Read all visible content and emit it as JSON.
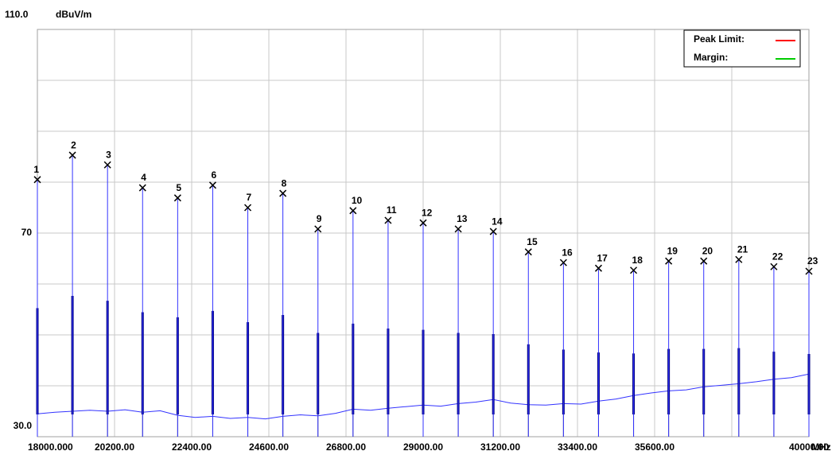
{
  "chart_data": {
    "type": "spectrum",
    "y_unit": "dBuV/m",
    "x_unit": "MHz",
    "xlim": [
      18000,
      40000
    ],
    "ylim": [
      30,
      110
    ],
    "xticks": [
      {
        "value": 18000,
        "label": "18000.000"
      },
      {
        "value": 20200,
        "label": "20200.00"
      },
      {
        "value": 22400,
        "label": "22400.00"
      },
      {
        "value": 24600,
        "label": "24600.00"
      },
      {
        "value": 26800,
        "label": "26800.00"
      },
      {
        "value": 29000,
        "label": "29000.00"
      },
      {
        "value": 31200,
        "label": "31200.00"
      },
      {
        "value": 33400,
        "label": "33400.00"
      },
      {
        "value": 35600,
        "label": "35600.00"
      },
      {
        "value": 37800,
        "label": null
      },
      {
        "value": 40000,
        "label": "40000.00"
      }
    ],
    "yticks": [
      {
        "value": 110,
        "label": "110.0"
      },
      {
        "value": 100,
        "label": null
      },
      {
        "value": 90,
        "label": null
      },
      {
        "value": 80,
        "label": null
      },
      70,
      {
        "value": 60,
        "label": null
      },
      {
        "value": 50,
        "label": null
      },
      {
        "value": 40,
        "label": null
      },
      {
        "value": 30,
        "label": "30.0"
      }
    ],
    "grid": true,
    "legend_position": "top-right",
    "legend": [
      {
        "name": "Peak Limit:",
        "color": "#ff0000"
      },
      {
        "name": "Margin:",
        "color": "#00cc00"
      }
    ],
    "peaks": {
      "color": "#3333ff",
      "labels": [
        1,
        2,
        3,
        4,
        5,
        6,
        7,
        8,
        9,
        10,
        11,
        12,
        13,
        14,
        15,
        16,
        17,
        18,
        19,
        20,
        21,
        22,
        23
      ],
      "x": [
        18000,
        19000,
        20000,
        21000,
        22000,
        23000,
        24000,
        25000,
        26000,
        27000,
        28000,
        29000,
        30000,
        31000,
        32000,
        33000,
        34000,
        35000,
        36000,
        37000,
        38000,
        39000,
        40000
      ],
      "values": [
        80.5,
        85.3,
        83.4,
        78.9,
        76.9,
        79.4,
        75.0,
        77.8,
        70.8,
        74.4,
        72.5,
        72.0,
        70.8,
        70.3,
        66.3,
        64.2,
        63.1,
        62.7,
        64.5,
        64.5,
        64.8,
        63.4,
        62.5
      ]
    },
    "trace": {
      "color": "#3333ff",
      "x": [
        18000,
        18500,
        19000,
        19500,
        20000,
        20500,
        21000,
        21500,
        22000,
        22500,
        23000,
        23500,
        24000,
        24500,
        25000,
        25500,
        26000,
        26500,
        27000,
        27500,
        28000,
        28500,
        29000,
        29500,
        30000,
        30500,
        31000,
        31500,
        32000,
        32500,
        33000,
        33500,
        34000,
        34500,
        35000,
        35500,
        36000,
        36500,
        37000,
        37500,
        38000,
        38500,
        39000,
        39500,
        40000
      ],
      "values": [
        34.5,
        34.8,
        35.0,
        35.2,
        35.0,
        35.3,
        34.8,
        35.1,
        34.2,
        33.8,
        34.0,
        33.6,
        33.8,
        33.5,
        34.0,
        34.3,
        34.1,
        34.6,
        35.4,
        35.2,
        35.6,
        35.9,
        36.2,
        36.0,
        36.5,
        36.8,
        37.3,
        36.6,
        36.3,
        36.2,
        36.5,
        36.4,
        37.0,
        37.4,
        38.1,
        38.6,
        39.0,
        39.2,
        39.8,
        40.1,
        40.4,
        40.8,
        41.3,
        41.6,
        42.3
      ]
    }
  }
}
